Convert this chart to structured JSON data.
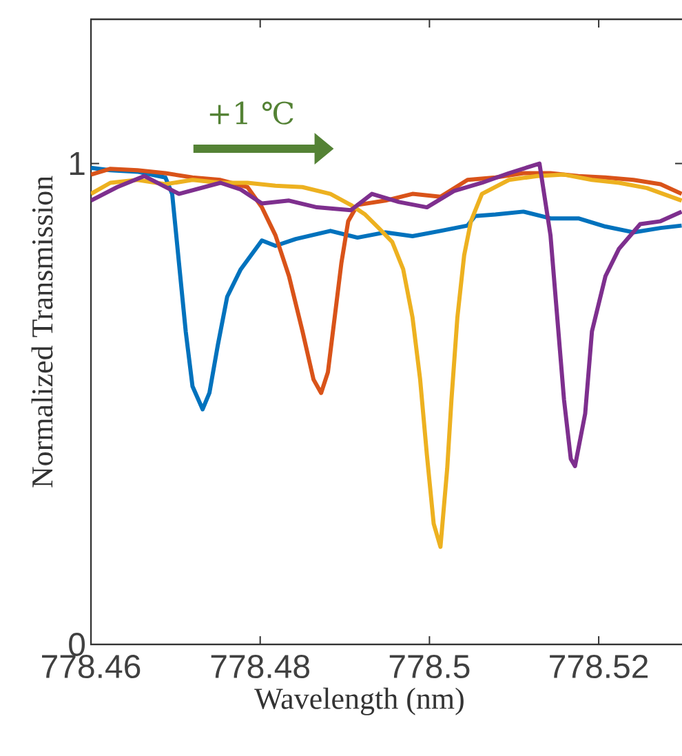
{
  "chart_data": {
    "type": "line",
    "xlabel": "Wavelength (nm)",
    "ylabel": "Normalized Transmission",
    "annotations": [
      "+1 ℃"
    ],
    "xlim": [
      778.46,
      778.53
    ],
    "ylim": [
      0,
      1.3
    ],
    "xticks": [
      778.46,
      778.48,
      778.5,
      778.52
    ],
    "yticks": [
      0,
      1
    ],
    "grid": false,
    "marker": "none",
    "line_style": "solid",
    "series": [
      {
        "color": "#0072bd",
        "x": [
          778.46,
          778.4623,
          778.4655,
          778.4688,
          778.4696,
          778.4704,
          778.4712,
          778.472,
          778.4732,
          778.474,
          778.475,
          778.4761,
          778.4777,
          778.4802,
          778.4818,
          778.4842,
          778.4883,
          778.4915,
          778.4948,
          778.498,
          778.5013,
          778.5045,
          778.5054,
          778.5078,
          778.5111,
          778.5143,
          778.5176,
          778.5208,
          778.5241,
          778.5273,
          778.5298
        ],
        "values": [
          0.991,
          0.986,
          0.983,
          0.971,
          0.937,
          0.794,
          0.651,
          0.537,
          0.489,
          0.523,
          0.623,
          0.723,
          0.78,
          0.84,
          0.829,
          0.843,
          0.86,
          0.846,
          0.857,
          0.849,
          0.86,
          0.871,
          0.891,
          0.894,
          0.9,
          0.886,
          0.886,
          0.869,
          0.857,
          0.866,
          0.871
        ]
      },
      {
        "color": "#d95319",
        "x": [
          778.46,
          778.4623,
          778.4655,
          778.4688,
          778.472,
          778.4753,
          778.4785,
          778.4802,
          778.4818,
          778.4834,
          778.485,
          778.4863,
          778.4872,
          778.488,
          778.4888,
          778.4896,
          778.4904,
          778.4915,
          778.4948,
          778.498,
          778.5013,
          778.5045,
          778.5078,
          778.5111,
          778.5143,
          778.5176,
          778.5208,
          778.5241,
          778.5273,
          778.5298
        ],
        "values": [
          0.977,
          0.989,
          0.986,
          0.98,
          0.971,
          0.966,
          0.951,
          0.909,
          0.851,
          0.766,
          0.651,
          0.551,
          0.523,
          0.566,
          0.68,
          0.794,
          0.88,
          0.914,
          0.923,
          0.937,
          0.931,
          0.966,
          0.971,
          0.98,
          0.98,
          0.974,
          0.971,
          0.966,
          0.957,
          0.937
        ]
      },
      {
        "color": "#edb120",
        "x": [
          778.46,
          778.4623,
          778.4655,
          778.4688,
          778.472,
          778.4753,
          778.4785,
          778.4818,
          778.485,
          778.4883,
          778.4907,
          778.4924,
          778.494,
          778.4956,
          778.4969,
          778.498,
          778.4989,
          778.4997,
          778.5005,
          778.5013,
          778.5021,
          778.5026,
          778.5033,
          778.5041,
          778.5049,
          778.5062,
          778.5094,
          778.5127,
          778.5159,
          778.5192,
          778.5224,
          778.5257,
          778.5298
        ],
        "values": [
          0.937,
          0.96,
          0.966,
          0.957,
          0.966,
          0.96,
          0.96,
          0.954,
          0.951,
          0.937,
          0.914,
          0.894,
          0.866,
          0.837,
          0.78,
          0.68,
          0.551,
          0.394,
          0.251,
          0.203,
          0.366,
          0.509,
          0.68,
          0.809,
          0.88,
          0.937,
          0.966,
          0.974,
          0.977,
          0.966,
          0.96,
          0.949,
          0.923
        ]
      },
      {
        "color": "#7e2f8e",
        "x": [
          778.46,
          778.4631,
          778.4663,
          778.4704,
          778.4753,
          778.4777,
          778.4802,
          778.4834,
          778.4867,
          778.4907,
          778.4932,
          778.4964,
          778.4997,
          778.5029,
          778.5062,
          778.5094,
          778.513,
          778.5143,
          778.5151,
          778.5159,
          778.5167,
          778.5172,
          778.5184,
          778.5192,
          778.5208,
          778.5224,
          778.5249,
          778.5273,
          778.5298
        ],
        "values": [
          0.923,
          0.951,
          0.974,
          0.937,
          0.96,
          0.946,
          0.917,
          0.923,
          0.909,
          0.903,
          0.937,
          0.92,
          0.909,
          0.943,
          0.96,
          0.98,
          1.0,
          0.851,
          0.68,
          0.509,
          0.386,
          0.371,
          0.48,
          0.651,
          0.766,
          0.823,
          0.874,
          0.88,
          0.9
        ]
      }
    ]
  }
}
